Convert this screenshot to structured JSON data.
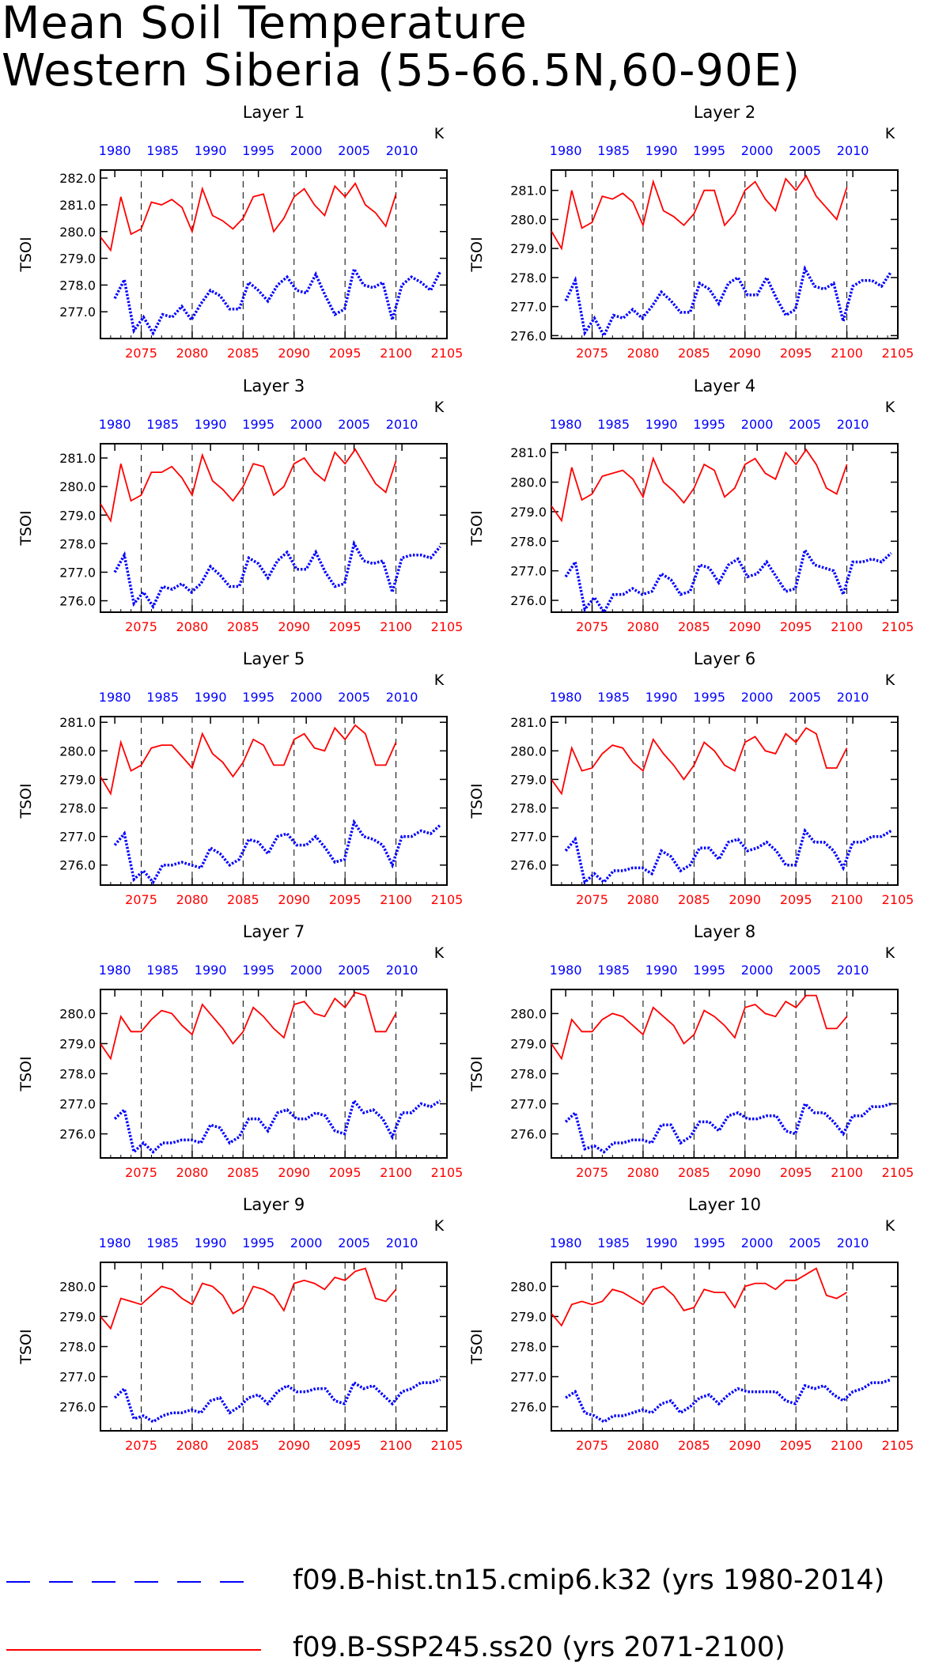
{
  "title": {
    "line1": "Mean Soil Temperature",
    "line2": "Western Siberia (55-66.5N,60-90E)"
  },
  "legend": [
    {
      "label": "f09.B-hist.tn15.cmip6.k32 (yrs 1980-2014)",
      "color": "#0000ff",
      "style": "dashed"
    },
    {
      "label": "f09.B-SSP245.ss20 (yrs 2071-2100)",
      "color": "#ff0000",
      "style": "solid"
    }
  ],
  "chart_data": {
    "type": "line",
    "ylabel": "TSOI",
    "yunit": "K",
    "top_axis_years": [
      "1980",
      "1985",
      "1990",
      "1995",
      "2000",
      "2005",
      "2010"
    ],
    "bottom_axis_years": [
      "2075",
      "2080",
      "2085",
      "2090",
      "2095",
      "2100",
      "2105"
    ],
    "hist_years": [
      1980,
      2014
    ],
    "future_years": [
      2071,
      2100
    ],
    "grid": "dashed vertical lines at 2075, 2080, 2085, 2090, 2095, 2100",
    "colors": {
      "hist": "#0000ff",
      "future": "#ff0000"
    },
    "panels": [
      {
        "title": "Layer 1",
        "ylim": [
          276.0,
          282.3
        ],
        "yticks": [
          "277.0",
          "278.0",
          "279.0",
          "280.0",
          "281.0",
          "282.0"
        ],
        "future": [
          279.8,
          279.3,
          281.3,
          279.9,
          280.1,
          281.1,
          281.0,
          281.2,
          280.9,
          280.0,
          281.6,
          280.6,
          280.4,
          280.1,
          280.5,
          281.3,
          281.4,
          280.0,
          280.5,
          281.3,
          281.6,
          281.0,
          280.6,
          281.7,
          281.3,
          281.8,
          281.0,
          280.7,
          280.2,
          281.4
        ],
        "hist": [
          277.5,
          278.2,
          276.3,
          276.8,
          276.2,
          276.9,
          276.8,
          277.2,
          276.7,
          277.3,
          277.8,
          277.6,
          277.1,
          277.1,
          278.1,
          277.8,
          277.4,
          278.0,
          278.3,
          277.8,
          277.7,
          278.4,
          277.6,
          276.9,
          277.1,
          278.6,
          278.0,
          277.9,
          278.1,
          276.7,
          278.0,
          278.3,
          278.1,
          277.8,
          278.5
        ]
      },
      {
        "title": "Layer 2",
        "ylim": [
          275.9,
          281.7
        ],
        "yticks": [
          "276.0",
          "277.0",
          "278.0",
          "279.0",
          "280.0",
          "281.0"
        ],
        "future": [
          279.6,
          279.0,
          281.0,
          279.7,
          279.9,
          280.8,
          280.7,
          280.9,
          280.6,
          279.8,
          281.3,
          280.3,
          280.1,
          279.8,
          280.2,
          281.0,
          281.0,
          279.8,
          280.2,
          281.0,
          281.3,
          280.7,
          280.3,
          281.4,
          281.0,
          281.5,
          280.8,
          280.4,
          280.0,
          281.1
        ],
        "hist": [
          277.2,
          277.9,
          276.1,
          276.6,
          276.0,
          276.7,
          276.6,
          276.9,
          276.6,
          277.0,
          277.5,
          277.2,
          276.8,
          276.8,
          277.8,
          277.6,
          277.1,
          277.8,
          278.0,
          277.4,
          277.4,
          278.0,
          277.3,
          276.7,
          276.9,
          278.3,
          277.7,
          277.6,
          277.8,
          276.5,
          277.7,
          277.9,
          277.9,
          277.7,
          278.2
        ]
      },
      {
        "title": "Layer 3",
        "ylim": [
          275.6,
          281.5
        ],
        "yticks": [
          "276.0",
          "277.0",
          "278.0",
          "279.0",
          "280.0",
          "281.0"
        ],
        "future": [
          279.4,
          278.8,
          280.8,
          279.5,
          279.7,
          280.5,
          280.5,
          280.7,
          280.3,
          279.7,
          281.1,
          280.2,
          279.9,
          279.5,
          280.0,
          280.8,
          280.7,
          279.7,
          280.0,
          280.8,
          281.0,
          280.5,
          280.2,
          281.2,
          280.8,
          281.3,
          280.7,
          280.1,
          279.8,
          280.9
        ],
        "hist": [
          277.0,
          277.6,
          275.9,
          276.3,
          275.8,
          276.5,
          276.4,
          276.6,
          276.3,
          276.6,
          277.2,
          276.9,
          276.5,
          276.5,
          277.5,
          277.3,
          276.8,
          277.4,
          277.7,
          277.1,
          277.1,
          277.7,
          277.0,
          276.5,
          276.6,
          278.0,
          277.4,
          277.3,
          277.4,
          276.3,
          277.5,
          277.6,
          277.6,
          277.5,
          277.9
        ]
      },
      {
        "title": "Layer 4",
        "ylim": [
          275.6,
          281.3
        ],
        "yticks": [
          "276.0",
          "277.0",
          "278.0",
          "279.0",
          "280.0",
          "281.0"
        ],
        "future": [
          279.2,
          278.7,
          280.5,
          279.4,
          279.6,
          280.2,
          280.3,
          280.4,
          280.1,
          279.5,
          280.8,
          280.0,
          279.7,
          279.3,
          279.8,
          280.6,
          280.4,
          279.5,
          279.8,
          280.6,
          280.8,
          280.3,
          280.1,
          281.0,
          280.6,
          281.1,
          280.6,
          279.8,
          279.6,
          280.6
        ],
        "hist": [
          276.8,
          277.3,
          275.7,
          276.1,
          275.6,
          276.2,
          276.2,
          276.4,
          276.2,
          276.3,
          276.9,
          276.7,
          276.2,
          276.3,
          277.2,
          277.1,
          276.6,
          277.2,
          277.4,
          276.8,
          276.9,
          277.3,
          276.8,
          276.3,
          276.4,
          277.7,
          277.2,
          277.1,
          277.0,
          276.2,
          277.3,
          277.3,
          277.4,
          277.3,
          277.6
        ]
      },
      {
        "title": "Layer 5",
        "ylim": [
          275.3,
          281.2
        ],
        "yticks": [
          "276.0",
          "277.0",
          "278.0",
          "279.0",
          "280.0",
          "281.0"
        ],
        "future": [
          279.1,
          278.5,
          280.3,
          279.3,
          279.5,
          280.1,
          280.2,
          280.2,
          279.8,
          279.4,
          280.6,
          279.9,
          279.6,
          279.1,
          279.6,
          280.4,
          280.2,
          279.5,
          279.5,
          280.4,
          280.6,
          280.1,
          280.0,
          280.8,
          280.4,
          280.9,
          280.6,
          279.5,
          279.5,
          280.3
        ],
        "hist": [
          276.7,
          277.1,
          275.5,
          275.8,
          275.4,
          276.0,
          276.0,
          276.1,
          276.0,
          275.9,
          276.6,
          276.4,
          276.0,
          276.2,
          276.9,
          276.8,
          276.4,
          277.0,
          277.1,
          276.7,
          276.7,
          277.0,
          276.6,
          276.1,
          276.2,
          277.5,
          277.0,
          276.9,
          276.7,
          276.0,
          277.0,
          277.0,
          277.2,
          277.1,
          277.4
        ]
      },
      {
        "title": "Layer 6",
        "ylim": [
          275.3,
          281.2
        ],
        "yticks": [
          "276.0",
          "277.0",
          "278.0",
          "279.0",
          "280.0",
          "281.0"
        ],
        "future": [
          279.0,
          278.5,
          280.1,
          279.3,
          279.4,
          279.9,
          280.2,
          280.1,
          279.6,
          279.3,
          280.4,
          279.9,
          279.5,
          279.0,
          279.5,
          280.3,
          280.0,
          279.5,
          279.3,
          280.3,
          280.5,
          280.0,
          279.9,
          280.6,
          280.3,
          280.8,
          280.6,
          279.4,
          279.4,
          280.1
        ],
        "hist": [
          276.5,
          276.9,
          275.4,
          275.7,
          275.4,
          275.8,
          275.8,
          275.9,
          275.9,
          275.7,
          276.5,
          276.3,
          275.8,
          276.0,
          276.6,
          276.6,
          276.2,
          276.8,
          276.9,
          276.5,
          276.6,
          276.8,
          276.5,
          276.0,
          276.0,
          277.2,
          276.8,
          276.8,
          276.5,
          275.9,
          276.8,
          276.8,
          277.0,
          277.0,
          277.2
        ]
      },
      {
        "title": "Layer 7",
        "ylim": [
          275.2,
          280.8
        ],
        "yticks": [
          "276.0",
          "277.0",
          "278.0",
          "279.0",
          "280.0"
        ],
        "future": [
          279.0,
          278.5,
          279.9,
          279.4,
          279.4,
          279.8,
          280.1,
          280.0,
          279.6,
          279.3,
          280.3,
          279.9,
          279.5,
          279.0,
          279.4,
          280.2,
          279.9,
          279.5,
          279.2,
          280.3,
          280.4,
          280.0,
          279.9,
          280.5,
          280.2,
          280.7,
          280.6,
          279.4,
          279.4,
          280.0
        ],
        "hist": [
          276.5,
          276.8,
          275.4,
          275.7,
          275.4,
          275.7,
          275.7,
          275.8,
          275.8,
          275.7,
          276.3,
          276.2,
          275.7,
          275.9,
          276.5,
          276.5,
          276.1,
          276.7,
          276.8,
          276.5,
          276.5,
          276.7,
          276.6,
          276.1,
          276.0,
          277.1,
          276.7,
          276.8,
          276.5,
          275.9,
          276.7,
          276.7,
          277.0,
          276.9,
          277.1
        ]
      },
      {
        "title": "Layer 8",
        "ylim": [
          275.2,
          280.8
        ],
        "yticks": [
          "276.0",
          "277.0",
          "278.0",
          "279.0",
          "280.0"
        ],
        "future": [
          279.0,
          278.5,
          279.8,
          279.4,
          279.4,
          279.8,
          280.0,
          279.9,
          279.6,
          279.3,
          280.2,
          279.9,
          279.6,
          279.0,
          279.3,
          280.1,
          279.9,
          279.6,
          279.2,
          280.2,
          280.3,
          280.0,
          279.9,
          280.4,
          280.2,
          280.6,
          280.6,
          279.5,
          279.5,
          279.9
        ],
        "hist": [
          276.4,
          276.7,
          275.5,
          275.6,
          275.4,
          275.7,
          275.7,
          275.8,
          275.8,
          275.7,
          276.3,
          276.3,
          275.7,
          275.9,
          276.4,
          276.4,
          276.1,
          276.6,
          276.7,
          276.5,
          276.5,
          276.6,
          276.6,
          276.1,
          276.0,
          277.0,
          276.7,
          276.7,
          276.4,
          276.0,
          276.6,
          276.6,
          276.9,
          276.9,
          277.0
        ]
      },
      {
        "title": "Layer 9",
        "ylim": [
          275.2,
          280.8
        ],
        "yticks": [
          "276.0",
          "277.0",
          "278.0",
          "279.0",
          "280.0"
        ],
        "future": [
          279.0,
          278.6,
          279.6,
          279.5,
          279.4,
          279.7,
          280.0,
          279.9,
          279.6,
          279.4,
          280.1,
          280.0,
          279.7,
          279.1,
          279.3,
          280.0,
          279.9,
          279.7,
          279.2,
          280.1,
          280.2,
          280.1,
          279.9,
          280.3,
          280.2,
          280.5,
          280.6,
          279.6,
          279.5,
          279.9
        ],
        "hist": [
          276.3,
          276.6,
          275.6,
          275.7,
          275.5,
          275.7,
          275.8,
          275.8,
          275.9,
          275.8,
          276.2,
          276.3,
          275.8,
          276.0,
          276.3,
          276.4,
          276.1,
          276.5,
          276.7,
          276.5,
          276.5,
          276.6,
          276.6,
          276.2,
          276.1,
          276.8,
          276.6,
          276.7,
          276.4,
          276.1,
          276.5,
          276.6,
          276.8,
          276.8,
          276.9
        ]
      },
      {
        "title": "Layer 10",
        "ylim": [
          275.2,
          280.8
        ],
        "yticks": [
          "276.0",
          "277.0",
          "278.0",
          "279.0",
          "280.0"
        ],
        "future": [
          279.1,
          278.7,
          279.4,
          279.5,
          279.4,
          279.5,
          279.9,
          279.8,
          279.6,
          279.4,
          279.9,
          280.0,
          279.7,
          279.2,
          279.3,
          279.9,
          279.8,
          279.8,
          279.3,
          280.0,
          280.1,
          280.1,
          279.9,
          280.2,
          280.2,
          280.4,
          280.6,
          279.7,
          279.6,
          279.8
        ],
        "hist": [
          276.3,
          276.5,
          275.8,
          275.7,
          275.5,
          275.7,
          275.7,
          275.8,
          275.9,
          275.8,
          276.1,
          276.2,
          275.8,
          276.0,
          276.3,
          276.4,
          276.1,
          276.4,
          276.6,
          276.5,
          276.5,
          276.5,
          276.5,
          276.2,
          276.1,
          276.7,
          276.6,
          276.7,
          276.4,
          276.2,
          276.5,
          276.6,
          276.8,
          276.8,
          276.9
        ]
      }
    ]
  }
}
